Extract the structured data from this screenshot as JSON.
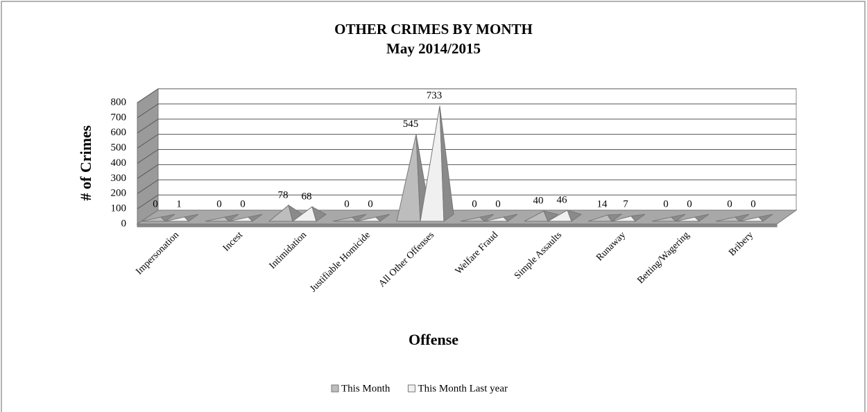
{
  "chart_data": {
    "type": "pyramid",
    "title": "OTHER CRIMES BY MONTH",
    "subtitle": "May 2014/2015",
    "x_label": "Offense",
    "y_label": "# of Crimes",
    "categories": [
      "Impersonation",
      "Incest",
      "Intimidation",
      "Justifiable Homicide",
      "All Other Offenses",
      "Welfare Fraud",
      "Simple Assaults",
      "Runaway",
      "Betting/Wagering",
      "Bribery"
    ],
    "series": [
      {
        "name": "This Month",
        "color": "#bdbdbd",
        "values": [
          0,
          0,
          78,
          0,
          545,
          0,
          40,
          14,
          0,
          0
        ]
      },
      {
        "name": "This Month Last year",
        "color": "#f0f0f0",
        "values": [
          1,
          0,
          68,
          0,
          733,
          0,
          46,
          7,
          0,
          0
        ]
      }
    ],
    "ylim": [
      0,
      800
    ],
    "yticks": [
      0,
      100,
      200,
      300,
      400,
      500,
      600,
      700,
      800
    ],
    "grid": true,
    "legend": "bottom"
  }
}
